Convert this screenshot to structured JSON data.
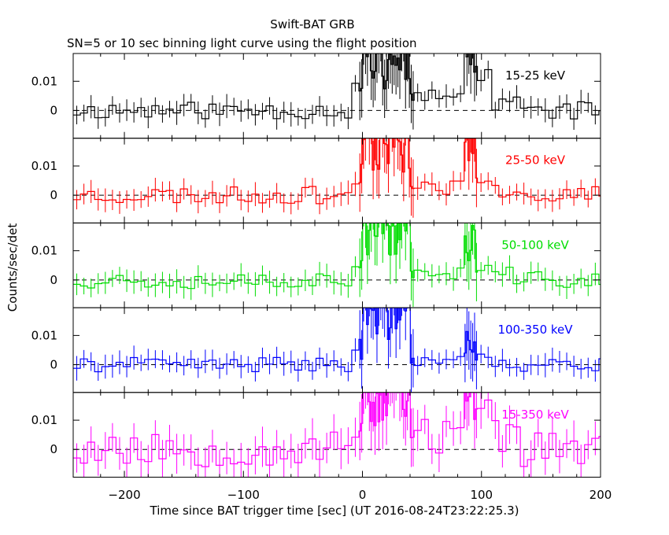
{
  "chart_data": {
    "type": "line",
    "title": "Swift-BAT GRB",
    "subtitle": "SN=5 or 10 sec binning light curve using the flight position",
    "xlabel": "Time since BAT trigger time [sec] (UT 2016-08-24T23:22:25.3)",
    "ylabel": "Counts/sec/det",
    "xlim": [
      -243,
      200
    ],
    "x_ticks": [
      -200,
      -100,
      0,
      100,
      200
    ],
    "x_tick_labels": [
      "−200",
      "−100",
      "0",
      "100",
      "200"
    ],
    "ylim": [
      -0.0095,
      0.0195
    ],
    "y_ticks": [
      0,
      0.01
    ],
    "y_tick_labels": [
      "0",
      "0.01"
    ],
    "zero_line": "dashed",
    "grid": false,
    "legend": "none",
    "panels": [
      {
        "label": "15-25 keV",
        "color": "#000000",
        "seed": 11,
        "noise": 0.003,
        "err": 0.0035
      },
      {
        "label": "25-50 keV",
        "color": "#ff0000",
        "seed": 23,
        "noise": 0.003,
        "err": 0.0035
      },
      {
        "label": "50-100 keV",
        "color": "#00dd00",
        "seed": 37,
        "noise": 0.003,
        "err": 0.0035
      },
      {
        "label": "100-350 keV",
        "color": "#0000ff",
        "seed": 41,
        "noise": 0.0025,
        "err": 0.0035
      },
      {
        "label": "15-350 keV",
        "color": "#ff00ff",
        "seed": 53,
        "noise": 0.006,
        "err": 0.006
      }
    ]
  }
}
